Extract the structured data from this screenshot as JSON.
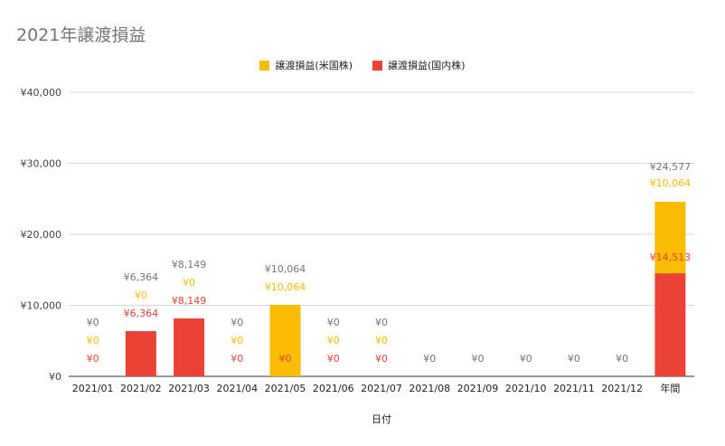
{
  "chart_data": {
    "type": "bar",
    "stacked": true,
    "title": "2021年譲渡損益",
    "xlabel": "日付",
    "ylabel": "",
    "ylim": [
      0,
      40000
    ],
    "yticks": [
      0,
      10000,
      20000,
      30000,
      40000
    ],
    "ytick_labels": [
      "¥0",
      "¥10,000",
      "¥20,000",
      "¥30,000",
      "¥40,000"
    ],
    "grid": true,
    "legend_position": "top",
    "categories": [
      "2021/01",
      "2021/02",
      "2021/03",
      "2021/04",
      "2021/05",
      "2021/06",
      "2021/07",
      "2021/08",
      "2021/09",
      "2021/10",
      "2021/11",
      "2021/12",
      "年間"
    ],
    "series": [
      {
        "name": "譲渡損益(国内株)",
        "color": "#ea4335",
        "values": [
          0,
          6364,
          8149,
          0,
          0,
          0,
          0,
          null,
          null,
          null,
          null,
          null,
          14513
        ],
        "labels": [
          "¥0",
          "¥6,364",
          "¥8,149",
          "¥0",
          "¥0",
          "¥0",
          "¥0",
          "",
          "",
          "",
          "",
          "",
          "¥14,513"
        ]
      },
      {
        "name": "譲渡損益(米国株)",
        "color": "#fbbc04",
        "values": [
          0,
          0,
          0,
          0,
          10064,
          0,
          0,
          null,
          null,
          null,
          null,
          null,
          10064
        ],
        "labels": [
          "¥0",
          "¥0",
          "¥0",
          "¥0",
          "¥10,064",
          "¥0",
          "¥0",
          "",
          "",
          "",
          "",
          "",
          "¥10,064"
        ]
      }
    ],
    "totals": [
      0,
      6364,
      8149,
      0,
      10064,
      0,
      0,
      0,
      0,
      0,
      0,
      0,
      24577
    ],
    "total_labels": [
      "¥0",
      "¥6,364",
      "¥8,149",
      "¥0",
      "¥10,064",
      "¥0",
      "¥0",
      "¥0",
      "¥0",
      "¥0",
      "¥0",
      "¥0",
      "¥24,577"
    ],
    "total_label_color": "#757575"
  }
}
